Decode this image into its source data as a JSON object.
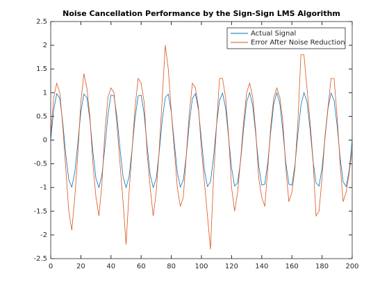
{
  "chart_data": {
    "type": "line",
    "title": "Noise Cancellation Performance by the Sign-Sign LMS Algorithm",
    "x": [
      0,
      2,
      4,
      6,
      8,
      10,
      12,
      14,
      16,
      18,
      20,
      22,
      24,
      26,
      28,
      30,
      32,
      34,
      36,
      38,
      40,
      42,
      44,
      46,
      48,
      50,
      52,
      54,
      56,
      58,
      60,
      62,
      64,
      66,
      68,
      70,
      72,
      74,
      76,
      78,
      80,
      82,
      84,
      86,
      88,
      90,
      92,
      94,
      96,
      98,
      100,
      102,
      104,
      106,
      108,
      110,
      112,
      114,
      116,
      118,
      120,
      122,
      124,
      126,
      128,
      130,
      132,
      134,
      136,
      138,
      140,
      142,
      144,
      146,
      148,
      150,
      152,
      154,
      156,
      158,
      160,
      162,
      164,
      166,
      168,
      170,
      172,
      174,
      176,
      178,
      180,
      182,
      184,
      186,
      188,
      190,
      192,
      194,
      196,
      198,
      200
    ],
    "series": [
      {
        "name": "Actual Signal",
        "color": "#0072bd",
        "values": [
          0,
          0.64,
          0.98,
          0.88,
          0.37,
          -0.31,
          -0.84,
          -0.99,
          -0.68,
          -0.06,
          0.59,
          0.97,
          0.9,
          0.43,
          -0.25,
          -0.81,
          -1,
          -0.73,
          -0.13,
          0.54,
          0.95,
          0.93,
          0.48,
          -0.19,
          -0.77,
          -1,
          -0.77,
          -0.19,
          0.48,
          0.93,
          0.95,
          0.54,
          -0.13,
          -0.73,
          -1,
          -0.81,
          -0.25,
          0.43,
          0.9,
          0.97,
          0.59,
          -0.06,
          -0.68,
          -0.99,
          -0.84,
          -0.31,
          0.37,
          0.88,
          0.98,
          0.64,
          0,
          -0.64,
          -0.98,
          -0.88,
          -0.37,
          0.31,
          0.84,
          0.99,
          0.68,
          0.06,
          -0.59,
          -0.97,
          -0.9,
          -0.43,
          0.25,
          0.81,
          1,
          0.73,
          0.13,
          -0.54,
          -0.95,
          -0.93,
          -0.48,
          0.19,
          0.77,
          1,
          0.77,
          0.19,
          -0.48,
          -0.93,
          -0.95,
          -0.54,
          0.13,
          0.73,
          1,
          0.81,
          0.25,
          -0.43,
          -0.9,
          -0.97,
          -0.59,
          0.06,
          0.68,
          0.99,
          0.84,
          0.31,
          -0.37,
          -0.88,
          -0.98,
          -0.64,
          0
        ]
      },
      {
        "name": "Error After Noise Reduction",
        "color": "#d95319",
        "values": [
          0.1,
          0.9,
          1.2,
          1.0,
          0.3,
          -0.6,
          -1.5,
          -1.9,
          -1.2,
          -0.3,
          0.8,
          1.4,
          1.1,
          0.5,
          -0.5,
          -1.2,
          -1.6,
          -0.9,
          0.2,
          0.9,
          1.1,
          1.0,
          0.3,
          -0.5,
          -1.3,
          -2.2,
          -1.1,
          -0.2,
          0.7,
          1.3,
          1.2,
          0.8,
          -0.3,
          -1.0,
          -1.6,
          -1.1,
          -0.2,
          0.9,
          2.0,
          1.5,
          0.6,
          -0.2,
          -1.0,
          -1.4,
          -1.2,
          -0.3,
          0.6,
          1.2,
          1.1,
          0.7,
          -0.2,
          -0.9,
          -1.6,
          -2.3,
          -0.8,
          0.3,
          1.3,
          1.3,
          0.9,
          0.1,
          -1.0,
          -1.5,
          -1.1,
          -0.4,
          0.4,
          1.0,
          1.2,
          0.9,
          0.2,
          -0.8,
          -1.2,
          -1.4,
          -0.6,
          0.3,
          0.9,
          1.1,
          0.9,
          0.4,
          -0.6,
          -1.3,
          -1.1,
          -0.6,
          0.4,
          1.8,
          1.8,
          1.1,
          0.4,
          -0.4,
          -1.6,
          -1.5,
          -0.8,
          0.1,
          0.7,
          1.3,
          1.3,
          0.5,
          -0.5,
          -1.3,
          -1.1,
          -0.7,
          -0.2
        ]
      }
    ],
    "xlim": [
      0,
      200
    ],
    "xticks": [
      0,
      20,
      40,
      60,
      80,
      100,
      120,
      140,
      160,
      180,
      200
    ],
    "ylim": [
      -2.5,
      2.5
    ],
    "yticks": [
      -2.5,
      -2,
      -1.5,
      -1,
      -0.5,
      0,
      0.5,
      1,
      1.5,
      2,
      2.5
    ],
    "legend": "northeast"
  }
}
